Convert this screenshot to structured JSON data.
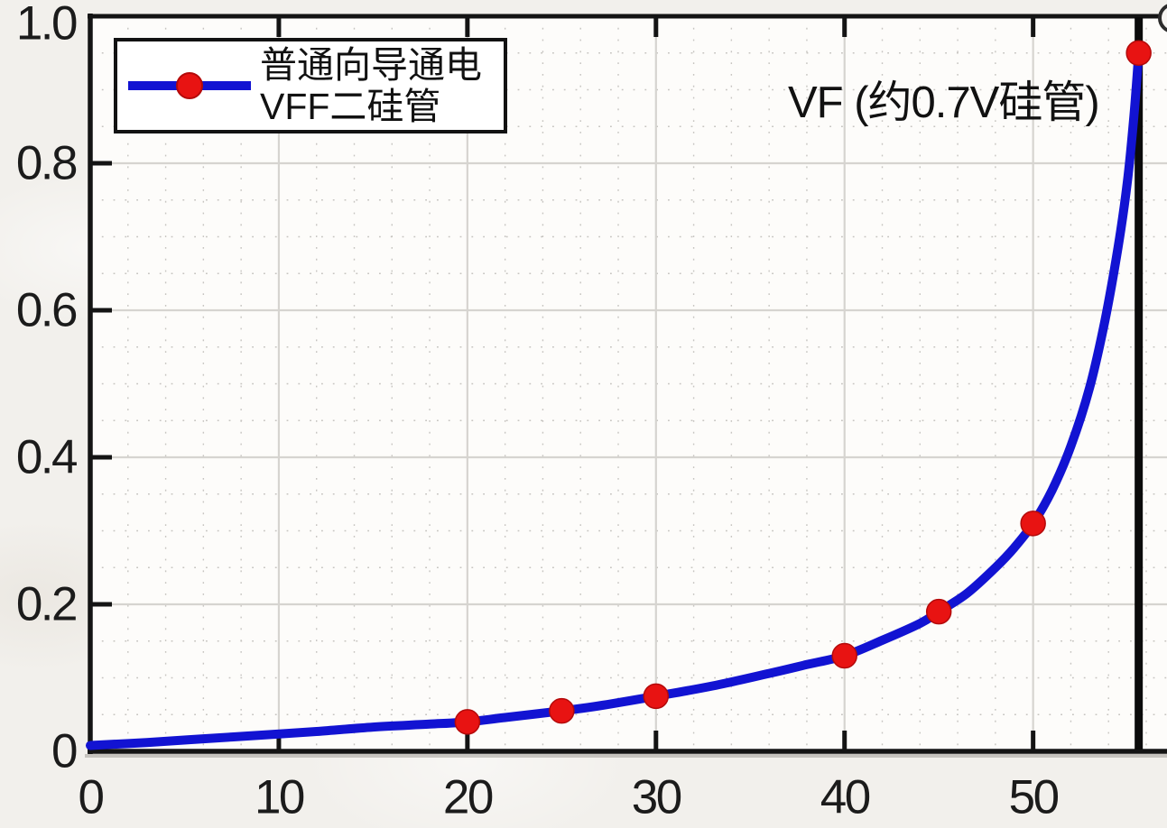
{
  "page": {
    "background": "#f2f0ec",
    "plot_background": "#fdfcfa"
  },
  "chart_data": {
    "type": "line",
    "title": "",
    "xlabel": "",
    "ylabel": "",
    "xlim": [
      0,
      57.1
    ],
    "ylim": [
      0,
      1.0
    ],
    "x_ticks": [
      0,
      10,
      20,
      30,
      40,
      50
    ],
    "x_tick_labels": [
      "0",
      "10",
      "20",
      "30",
      "40",
      "50"
    ],
    "y_ticks": [
      0,
      0.2,
      0.4,
      0.6,
      0.8,
      1.0
    ],
    "y_tick_labels": [
      "0",
      "0.2",
      "0.4",
      "0.6",
      "0.8",
      "1.0"
    ],
    "grid": {
      "major": true,
      "minor": true,
      "minor_x_step": 2,
      "minor_y_step": 0.05,
      "major_color": "#d6d4d0",
      "minor_color": "#c6c4c0"
    },
    "axis_color": "#141414",
    "legend": {
      "position": "top-left",
      "lines": [
        "普通向导通电",
        "VFF二硅管"
      ]
    },
    "annotation": {
      "text": "VF (约0.7V硅管)",
      "vline_x": 55.6,
      "vline_color": "#0b0b0b"
    },
    "series": [
      {
        "name": "普通向导通电 VFF二硅管",
        "color": "#1213d2",
        "line_width": 10,
        "marker": "circle",
        "marker_color": "#e81312",
        "marker_edge_color": "#b40a0a",
        "points": [
          [
            20,
            0.04
          ],
          [
            25,
            0.055
          ],
          [
            30,
            0.075
          ],
          [
            40,
            0.13
          ],
          [
            45,
            0.19
          ],
          [
            50,
            0.31
          ],
          [
            55.6,
            0.95
          ]
        ],
        "curve_samples": [
          [
            0,
            0.008
          ],
          [
            3,
            0.012
          ],
          [
            6,
            0.017
          ],
          [
            9,
            0.022
          ],
          [
            12,
            0.027
          ],
          [
            15,
            0.033
          ],
          [
            18,
            0.037
          ],
          [
            20,
            0.04
          ],
          [
            22,
            0.046
          ],
          [
            25,
            0.055
          ],
          [
            27,
            0.062
          ],
          [
            30,
            0.075
          ],
          [
            33,
            0.089
          ],
          [
            36,
            0.106
          ],
          [
            38,
            0.118
          ],
          [
            40,
            0.13
          ],
          [
            42,
            0.151
          ],
          [
            44,
            0.174
          ],
          [
            45,
            0.19
          ],
          [
            46.5,
            0.215
          ],
          [
            48,
            0.25
          ],
          [
            49,
            0.277
          ],
          [
            50,
            0.31
          ],
          [
            51,
            0.355
          ],
          [
            52,
            0.415
          ],
          [
            53,
            0.495
          ],
          [
            53.8,
            0.585
          ],
          [
            54.5,
            0.685
          ],
          [
            55.0,
            0.775
          ],
          [
            55.35,
            0.865
          ],
          [
            55.6,
            0.95
          ]
        ]
      }
    ]
  }
}
